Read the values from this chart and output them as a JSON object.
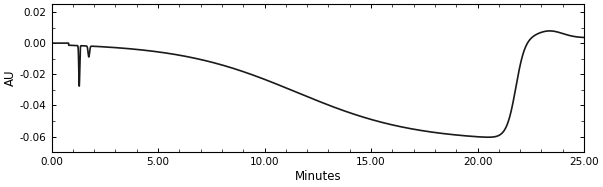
{
  "xlim": [
    0,
    25
  ],
  "ylim": [
    -0.07,
    0.025
  ],
  "xlabel": "Minutes",
  "ylabel": "AU",
  "xticks": [
    0.0,
    5.0,
    10.0,
    15.0,
    20.0,
    25.0
  ],
  "xtick_labels": [
    "0.00",
    "5.00",
    "10.00",
    "15.00",
    "20.00",
    "25.00"
  ],
  "yticks": [
    0.02,
    0.0,
    -0.02,
    -0.04,
    -0.06
  ],
  "line_color": "#1a1a1a",
  "background_color": "#ffffff",
  "line_width": 1.2
}
